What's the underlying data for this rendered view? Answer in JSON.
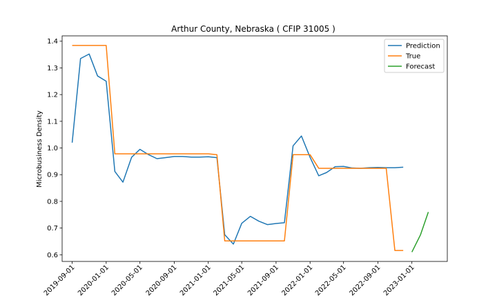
{
  "chart_data": {
    "type": "line",
    "title": "Arthur County, Nebraska ( CFIP 31005 )",
    "xlabel": "",
    "ylabel": "Microbusiness Density",
    "xlim": [
      "2019-07-27",
      "2023-05-08"
    ],
    "ylim": [
      0.575,
      1.42
    ],
    "x_ticks": [
      "2019-09-01",
      "2020-01-01",
      "2020-05-01",
      "2020-09-01",
      "2021-01-01",
      "2021-05-01",
      "2021-09-01",
      "2022-01-01",
      "2022-05-01",
      "2022-09-01",
      "2023-01-01"
    ],
    "y_ticks": [
      0.6,
      0.7,
      0.8,
      0.9,
      1.0,
      1.1,
      1.2,
      1.3,
      1.4
    ],
    "y_tick_labels": [
      "0.6",
      "0.7",
      "0.8",
      "0.9",
      "1.0",
      "1.1",
      "1.2",
      "1.3",
      "1.4"
    ],
    "grid": false,
    "legend_position": "top-right",
    "series": [
      {
        "name": "Prediction",
        "color": "#1f77b4",
        "x": [
          "2019-09-01",
          "2019-10-01",
          "2019-11-01",
          "2019-12-01",
          "2020-01-01",
          "2020-02-01",
          "2020-03-01",
          "2020-04-01",
          "2020-05-01",
          "2020-06-01",
          "2020-07-01",
          "2020-08-01",
          "2020-09-01",
          "2020-10-01",
          "2020-11-01",
          "2020-12-01",
          "2021-01-01",
          "2021-02-01",
          "2021-03-01",
          "2021-04-01",
          "2021-05-01",
          "2021-06-01",
          "2021-07-01",
          "2021-08-01",
          "2021-09-01",
          "2021-10-01",
          "2021-11-01",
          "2021-12-01",
          "2022-01-01",
          "2022-02-01",
          "2022-03-01",
          "2022-04-01",
          "2022-05-01",
          "2022-06-01",
          "2022-07-01",
          "2022-08-01",
          "2022-09-01",
          "2022-10-01",
          "2022-11-01",
          "2022-12-01"
        ],
        "y": [
          1.02,
          1.335,
          1.352,
          1.27,
          1.25,
          0.912,
          0.872,
          0.965,
          0.995,
          0.975,
          0.96,
          0.964,
          0.968,
          0.968,
          0.966,
          0.966,
          0.967,
          0.964,
          0.675,
          0.64,
          0.718,
          0.744,
          0.726,
          0.713,
          0.717,
          0.72,
          1.008,
          1.045,
          0.965,
          0.896,
          0.908,
          0.93,
          0.931,
          0.925,
          0.924,
          0.926,
          0.927,
          0.926,
          0.926,
          0.928
        ]
      },
      {
        "name": "True",
        "color": "#ff7f0e",
        "x": [
          "2019-09-01",
          "2019-10-01",
          "2019-11-01",
          "2019-12-01",
          "2020-01-01",
          "2020-02-01",
          "2020-03-01",
          "2020-04-01",
          "2020-05-01",
          "2020-06-01",
          "2020-07-01",
          "2020-08-01",
          "2020-09-01",
          "2020-10-01",
          "2020-11-01",
          "2020-12-01",
          "2021-01-01",
          "2021-02-01",
          "2021-03-01",
          "2021-04-01",
          "2021-05-01",
          "2021-06-01",
          "2021-07-01",
          "2021-08-01",
          "2021-09-01",
          "2021-10-01",
          "2021-11-01",
          "2021-12-01",
          "2022-01-01",
          "2022-02-01",
          "2022-03-01",
          "2022-04-01",
          "2022-05-01",
          "2022-06-01",
          "2022-07-01",
          "2022-08-01",
          "2022-09-01",
          "2022-10-01",
          "2022-11-01",
          "2022-12-01"
        ],
        "y": [
          1.384,
          1.384,
          1.384,
          1.384,
          1.384,
          0.978,
          0.978,
          0.978,
          0.978,
          0.978,
          0.978,
          0.978,
          0.978,
          0.978,
          0.978,
          0.978,
          0.978,
          0.975,
          0.652,
          0.652,
          0.652,
          0.652,
          0.652,
          0.652,
          0.652,
          0.652,
          0.975,
          0.975,
          0.975,
          0.924,
          0.924,
          0.924,
          0.924,
          0.924,
          0.924,
          0.924,
          0.924,
          0.924,
          0.616,
          0.616
        ]
      },
      {
        "name": "Forecast",
        "color": "#2ca02c",
        "x": [
          "2023-01-01",
          "2023-02-01",
          "2023-03-01"
        ],
        "y": [
          0.61,
          0.675,
          0.76
        ]
      }
    ]
  }
}
